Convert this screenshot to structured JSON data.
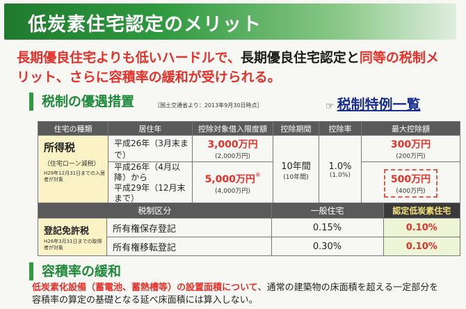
{
  "title": "低炭素住宅認定のメリット",
  "lead": {
    "part1": "長期優良住宅よりも低いハードルで、",
    "part2": "長期優良住宅認定",
    "part3": "と",
    "part4": "同等の税制メ",
    "part5": "リット、さらに容積率の緩和が受けられる。"
  },
  "section1": {
    "heading": "税制の優遇措置",
    "source": "［国土交通省より：2013年9月30日時点］",
    "link_icon": "pointing-hand-icon",
    "link_label": "税制特例一覧"
  },
  "table1": {
    "headers": [
      "住宅の種類",
      "居住年",
      "控除対象借入限度額",
      "控除期間",
      "控除率",
      "最大控除額"
    ],
    "type_main": "所得税",
    "type_sub": "（住宅ローン減税）",
    "type_note": "H29年12月31日までの入居者が対象",
    "row1_year": "平成26年（3月末まで）",
    "row1_limit": "3,000万円",
    "row1_limit_sub": "(2,000万円)",
    "row2_year_a": "平成26年（4月以降）から",
    "row2_year_b": "平成29年（12月末まで）",
    "row2_limit": "5,000万円",
    "row2_mark": "※",
    "row2_limit_sub": "(4,000万円)",
    "period": "10年間",
    "period_sub": "(10年間)",
    "rate": "1.0%",
    "rate_sub": "(1.0%)",
    "max1": "300万円",
    "max1_sub": "(200万円)",
    "max2": "500万円",
    "max2_sub": "(400万円)"
  },
  "table2": {
    "headers": [
      "税制区分",
      "一般住宅",
      "認定低炭素住宅"
    ],
    "type_main": "登記免許税",
    "type_note": "H26年3月31日までの取得者が対象",
    "rows": [
      {
        "label": "所有権保存登記",
        "general": "0.15%",
        "certified": "0.10%"
      },
      {
        "label": "所有権移転登記",
        "general": "0.30%",
        "certified": "0.10%"
      }
    ]
  },
  "section2": {
    "heading": "容積率の緩和",
    "text_red": "低炭素化設備（蓄電池、蓄熱槽等）の設置面積について",
    "text_black": "、通常の建築物の床面積を超える一定部分を",
    "text_line2": "容積率の算定の基礎となる延べ床面積には算入しない。"
  }
}
